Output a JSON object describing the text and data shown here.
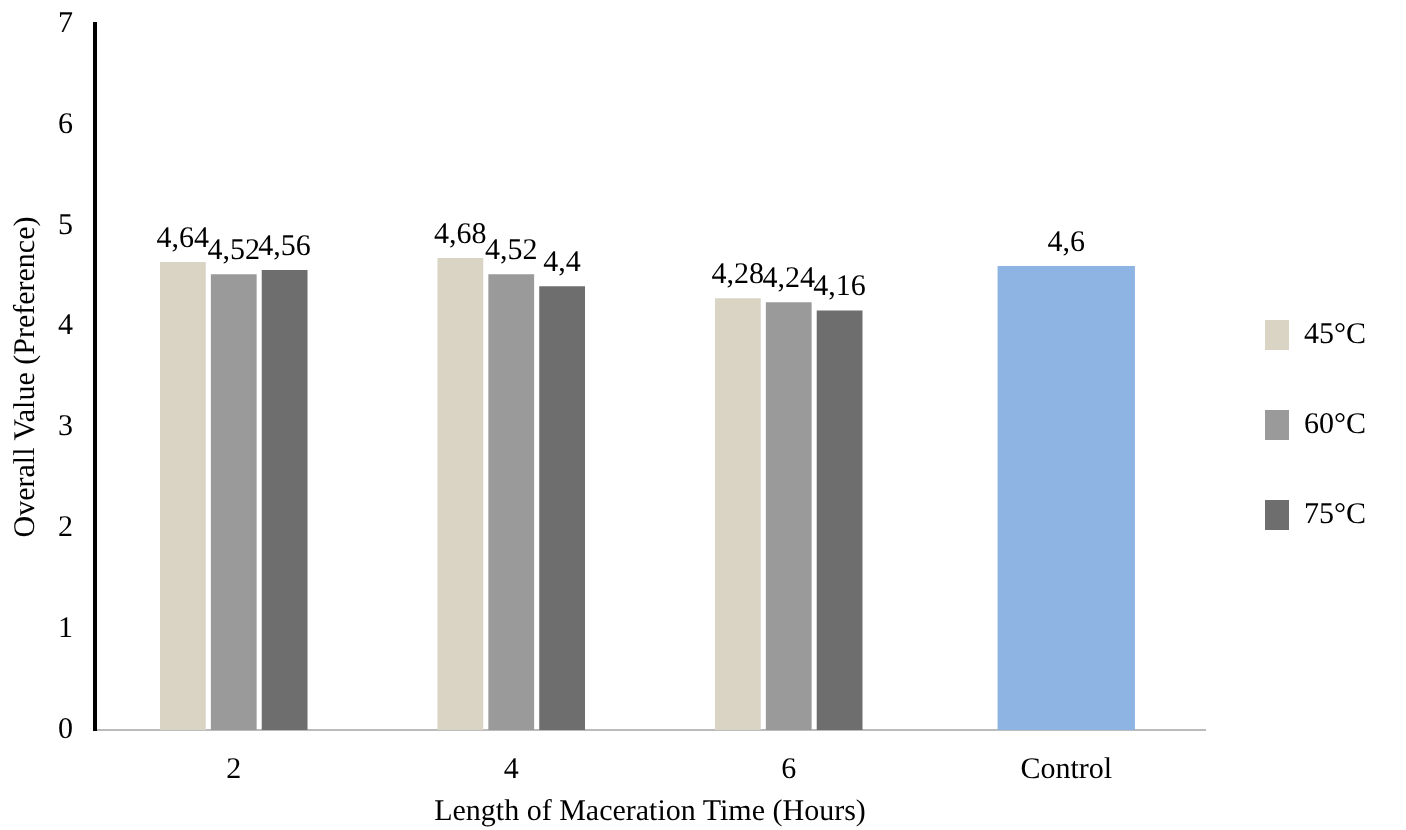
{
  "chart_data": {
    "type": "bar",
    "xlabel": "Length of Maceration Time (Hours)",
    "ylabel": "Overall Value (Preference)",
    "categories": [
      "2",
      "4",
      "6",
      "Control"
    ],
    "series": [
      {
        "name": "45°C",
        "color": "#d9d4c4",
        "values": [
          4.64,
          4.68,
          4.28,
          null
        ],
        "value_labels": [
          "4,64",
          "4,68",
          "4,28",
          null
        ]
      },
      {
        "name": "60°C",
        "color": "#9a9a9a",
        "values": [
          4.52,
          4.52,
          4.24,
          null
        ],
        "value_labels": [
          "4,52",
          "4,52",
          "4,24",
          null
        ]
      },
      {
        "name": "75°C",
        "color": "#6e6e6e",
        "values": [
          4.56,
          4.4,
          4.16,
          null
        ],
        "value_labels": [
          "4,56",
          "4,4",
          "4,16",
          null
        ]
      },
      {
        "color": "#8db4e2",
        "values": [
          null,
          null,
          null,
          4.6
        ],
        "value_labels": [
          null,
          null,
          null,
          "4,6"
        ]
      }
    ],
    "ylim": [
      0,
      7
    ],
    "yticks": [
      0,
      1,
      2,
      3,
      4,
      5,
      6,
      7
    ],
    "grid": false,
    "legend": "right"
  }
}
